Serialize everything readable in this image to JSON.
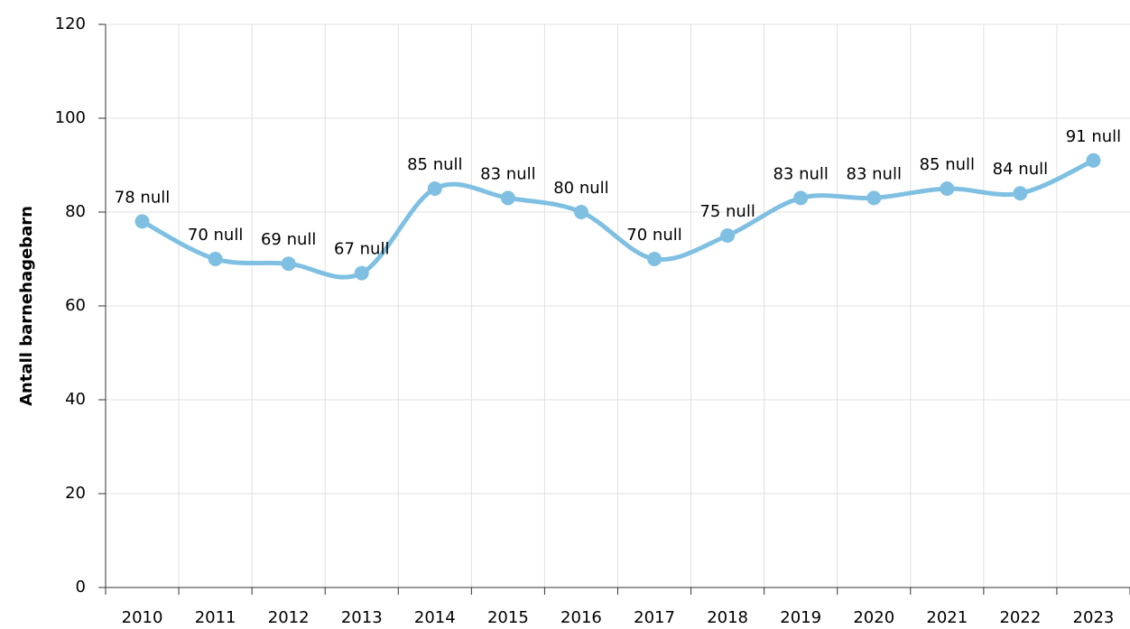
{
  "chart_data": {
    "type": "line",
    "y_label": "Antall barnehagebarn",
    "categories": [
      "2010",
      "2011",
      "2012",
      "2013",
      "2014",
      "2015",
      "2016",
      "2017",
      "2018",
      "2019",
      "2020",
      "2021",
      "2022",
      "2023"
    ],
    "series": [
      {
        "color": "#7fc0e2",
        "values": [
          78,
          70,
          69,
          67,
          85,
          83,
          80,
          70,
          75,
          83,
          83,
          85,
          84,
          91
        ],
        "value_labels": [
          "78 null",
          "70 null",
          "69 null",
          "67 null",
          "85 null",
          "83 null",
          "80 null",
          "70 null",
          "75 null",
          "83 null",
          "83 null",
          "85 null",
          "84 null",
          "91 null"
        ]
      }
    ],
    "ylim": [
      0,
      120
    ],
    "yticks": [
      0,
      20,
      40,
      60,
      80,
      100,
      120
    ],
    "grid": true,
    "smooth": true
  }
}
